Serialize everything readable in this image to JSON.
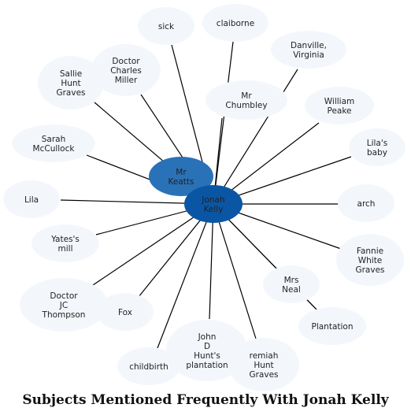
{
  "title": "Subjects Mentioned Frequently With Jonah Kelly",
  "colors": {
    "center": "#0b56a4",
    "secondary": "#2a72b8",
    "peripheral": "#f3f7fc",
    "edge": "#000000"
  },
  "center_node": {
    "label": "Jonah Kelly",
    "lines": [
      "Jonah",
      "Kelly"
    ]
  },
  "nodes": [
    {
      "id": "sick",
      "lines": [
        "sick"
      ]
    },
    {
      "id": "claiborne",
      "lines": [
        "claiborne"
      ]
    },
    {
      "id": "danville-virginia",
      "lines": [
        "Danville,",
        "Virginia"
      ]
    },
    {
      "id": "doctor-charles-miller",
      "lines": [
        "Doctor",
        "Charles",
        "Miller"
      ]
    },
    {
      "id": "sallie-hunt-graves",
      "lines": [
        "Sallie",
        "Hunt",
        "Graves"
      ]
    },
    {
      "id": "mr-chumbley",
      "lines": [
        "Mr",
        "Chumbley"
      ]
    },
    {
      "id": "william-peake",
      "lines": [
        "William",
        "Peake"
      ]
    },
    {
      "id": "sarah-mccullock",
      "lines": [
        "Sarah",
        "McCullock"
      ]
    },
    {
      "id": "lilas-baby",
      "lines": [
        "Lila's",
        "baby"
      ]
    },
    {
      "id": "mr-keatts",
      "lines": [
        "Mr",
        "Keatts"
      ],
      "emphasis": true
    },
    {
      "id": "lila",
      "lines": [
        "Lila"
      ]
    },
    {
      "id": "arch",
      "lines": [
        "arch"
      ]
    },
    {
      "id": "yates-mill",
      "lines": [
        "Yates's",
        "mill"
      ]
    },
    {
      "id": "fannie-white-graves",
      "lines": [
        "Fannie",
        "White",
        "Graves"
      ]
    },
    {
      "id": "mrs-neal",
      "lines": [
        "Mrs",
        "Neal"
      ]
    },
    {
      "id": "doctor-jc-thompson",
      "lines": [
        "Doctor",
        "JC",
        "Thompson"
      ]
    },
    {
      "id": "fox",
      "lines": [
        "Fox"
      ]
    },
    {
      "id": "plantation",
      "lines": [
        "Plantation"
      ]
    },
    {
      "id": "john-d-hunts-plantation",
      "lines": [
        "John",
        "D",
        "Hunt's",
        "plantation"
      ]
    },
    {
      "id": "jeremiah-hunt-graves",
      "lines": [
        "remiah",
        "Hunt",
        "Graves"
      ]
    },
    {
      "id": "childbirth",
      "lines": [
        "childbirth"
      ]
    }
  ]
}
